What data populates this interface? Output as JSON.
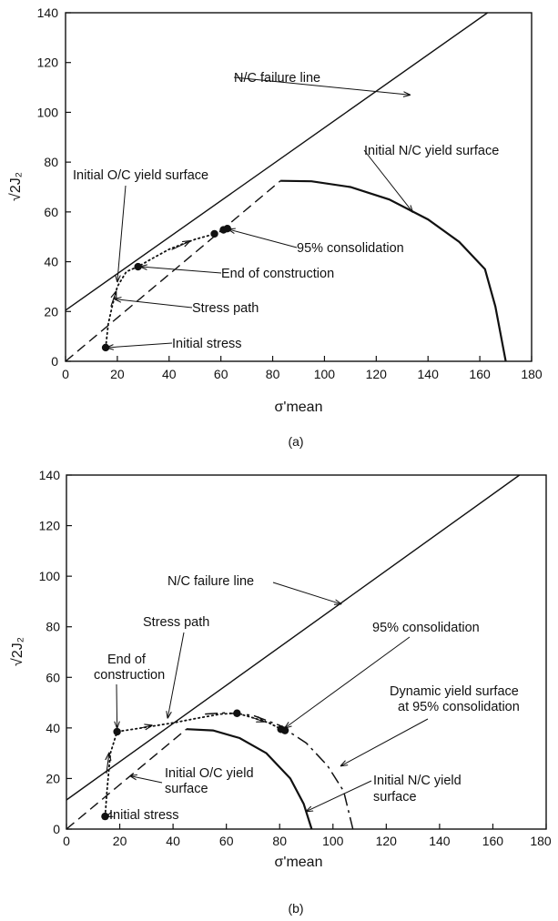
{
  "chart_data": [
    {
      "type": "line",
      "panel_label": "(a)",
      "xlabel": "σ'mean",
      "ylabel": "√2J₂",
      "xlim": [
        0,
        180
      ],
      "ylim": [
        0,
        140
      ],
      "xticks": [
        "0",
        "20",
        "40",
        "60",
        "80",
        "100",
        "120",
        "140",
        "160",
        "180"
      ],
      "yticks": [
        "0",
        "20",
        "40",
        "60",
        "80",
        "100",
        "120",
        "140"
      ],
      "series": [
        {
          "role": "failure_line",
          "points": [
            [
              0,
              20.5
            ],
            [
              163,
              140
            ]
          ]
        },
        {
          "role": "oc_line",
          "points": [
            [
              0,
              0
            ],
            [
              83,
              72.5
            ]
          ]
        },
        {
          "role": "nc_yield",
          "points": [
            [
              83,
              72.5
            ],
            [
              95,
              72.3
            ],
            [
              110,
              70
            ],
            [
              125,
              65
            ],
            [
              140,
              57
            ],
            [
              152,
              48
            ],
            [
              162,
              37
            ],
            [
              166,
              22
            ],
            [
              170,
              0
            ]
          ]
        },
        {
          "role": "stress_path",
          "points": [
            [
              15.5,
              5.5
            ],
            [
              16.5,
              15
            ],
            [
              18,
              22
            ],
            [
              20,
              30
            ],
            [
              23.5,
              36
            ],
            [
              28,
              38
            ],
            [
              33,
              41
            ],
            [
              40,
              45
            ],
            [
              45,
              47
            ],
            [
              50,
              49
            ],
            [
              57,
              51
            ],
            [
              61,
              52.8
            ],
            [
              62,
              53.2
            ]
          ]
        }
      ],
      "markers": [
        [
          15.5,
          5.5
        ],
        [
          28,
          38
        ],
        [
          57.5,
          51.2
        ],
        [
          61,
          52.8
        ],
        [
          62.5,
          53.3
        ]
      ],
      "arrows": [
        [
          [
            17.5,
            22
          ],
          [
            19.5,
            28
          ]
        ],
        [
          [
            41,
            44.8
          ],
          [
            48,
            48.3
          ]
        ]
      ],
      "annotations": [
        {
          "text": "N/C failure line",
          "tip": [
            133,
            107
          ]
        },
        {
          "text": "Initial N/C yield surface",
          "tip": [
            134,
            60
          ]
        },
        {
          "text": "Initial O/C yield surface",
          "tip": [
            20,
            32
          ]
        },
        {
          "text": "95% consolidation",
          "tip": [
            63,
            53
          ]
        },
        {
          "text": "End of construction",
          "tip": [
            29,
            38
          ]
        },
        {
          "text": "Stress path",
          "tip": [
            19,
            25
          ]
        },
        {
          "text": "Initial stress",
          "tip": [
            16,
            5.5
          ]
        }
      ]
    },
    {
      "type": "line",
      "panel_label": "(b)",
      "xlabel": "σ'mean",
      "ylabel": "√2J₂",
      "xlim": [
        0,
        180
      ],
      "ylim": [
        0,
        140
      ],
      "xticks": [
        "0",
        "20",
        "40",
        "60",
        "80",
        "100",
        "120",
        "140",
        "160",
        "180"
      ],
      "yticks": [
        "0",
        "20",
        "40",
        "60",
        "80",
        "100",
        "120",
        "140"
      ],
      "series": [
        {
          "role": "failure_line",
          "points": [
            [
              0,
              11.5
            ],
            [
              170,
              140
            ]
          ]
        },
        {
          "role": "oc_line",
          "points": [
            [
              0,
              0
            ],
            [
              45,
              39.5
            ]
          ]
        },
        {
          "role": "nc_yield",
          "points": [
            [
              45,
              39.5
            ],
            [
              55,
              39
            ],
            [
              65,
              36
            ],
            [
              75,
              30
            ],
            [
              84,
              20
            ],
            [
              89,
              10
            ],
            [
              92,
              0
            ]
          ]
        },
        {
          "role": "dynamic_yield",
          "points": [
            [
              52,
              45.5
            ],
            [
              60,
              46
            ],
            [
              70,
              45
            ],
            [
              80,
              41
            ],
            [
              90,
              34
            ],
            [
              98,
              25
            ],
            [
              104,
              15
            ],
            [
              107.5,
              0
            ]
          ]
        },
        {
          "role": "stress_path",
          "points": [
            [
              14.5,
              5
            ],
            [
              15.2,
              15
            ],
            [
              16.5,
              30
            ],
            [
              19,
              38.5
            ],
            [
              28,
              40
            ],
            [
              40,
              42
            ],
            [
              50,
              44
            ],
            [
              58,
              45.5
            ],
            [
              64,
              45.8
            ],
            [
              70,
              44
            ],
            [
              76,
              42
            ],
            [
              81.5,
              39
            ]
          ]
        }
      ],
      "markers": [
        [
          14.5,
          5
        ],
        [
          19,
          38.5
        ],
        [
          64,
          45.8
        ],
        [
          80.5,
          39.5
        ],
        [
          82,
          39
        ]
      ],
      "arrows": [
        [
          [
            15,
            22
          ],
          [
            16,
            30
          ]
        ],
        [
          [
            28,
            40
          ],
          [
            32,
            41
          ]
        ],
        [
          [
            70,
            44
          ],
          [
            74,
            42.5
          ]
        ]
      ],
      "annotations": [
        {
          "text": "N/C failure line",
          "tip": [
            103,
            89
          ]
        },
        {
          "text": "Stress path",
          "tip": [
            38,
            44
          ]
        },
        {
          "text": "95% consolidation",
          "tip": [
            82,
            40
          ]
        },
        {
          "text": "End of",
          "tip": [
            19,
            40
          ]
        },
        {
          "text": "construction",
          "tip": [
            19,
            40
          ]
        },
        {
          "text": "Dynamic yield surface",
          "tip": [
            103,
            25
          ]
        },
        {
          "text": "at 95% consolidation",
          "tip": [
            103,
            25
          ]
        },
        {
          "text": "Initial O/C yield",
          "tip": [
            24,
            21
          ]
        },
        {
          "text": "surface",
          "tip": [
            24,
            21
          ]
        },
        {
          "text": "Initial N/C yield",
          "tip": [
            90,
            7
          ]
        },
        {
          "text": "surface",
          "tip": [
            90,
            7
          ]
        },
        {
          "text": "Initial stress",
          "tip": [
            15,
            5
          ]
        }
      ]
    }
  ]
}
